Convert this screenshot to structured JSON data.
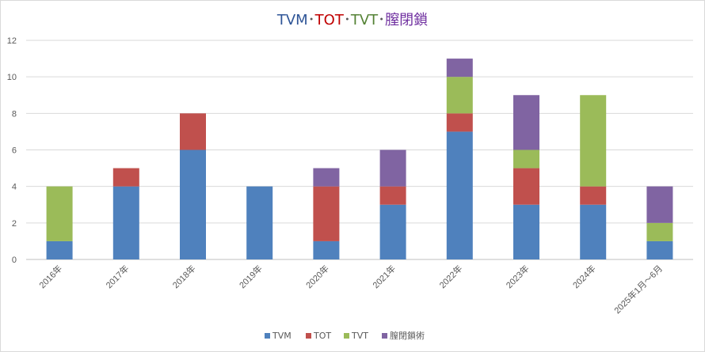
{
  "chart_data": {
    "type": "bar",
    "stacked": true,
    "title_parts": [
      {
        "text": "TVM",
        "color": "#2F5597"
      },
      {
        "text": "･",
        "color": "#595959"
      },
      {
        "text": "TOT",
        "color": "#C00000"
      },
      {
        "text": "･",
        "color": "#595959"
      },
      {
        "text": "TVT",
        "color": "#548235"
      },
      {
        "text": "･",
        "color": "#595959"
      },
      {
        "text": "膣閉鎖",
        "color": "#7030A0"
      }
    ],
    "categories": [
      "2016年",
      "2017年",
      "2018年",
      "2019年",
      "2020年",
      "2021年",
      "2022年",
      "2023年",
      "2024年",
      "2025年1月～6月"
    ],
    "series": [
      {
        "name": "TVM",
        "color": "#4F81BD",
        "values": [
          1,
          4,
          6,
          4,
          1,
          3,
          7,
          3,
          3,
          1
        ]
      },
      {
        "name": "TOT",
        "color": "#C0504D",
        "values": [
          0,
          1,
          2,
          0,
          3,
          1,
          1,
          2,
          1,
          0
        ]
      },
      {
        "name": "TVT",
        "color": "#9BBB59",
        "values": [
          3,
          0,
          0,
          0,
          0,
          0,
          2,
          1,
          5,
          1
        ]
      },
      {
        "name": "膣閉鎖術",
        "color": "#8064A2",
        "values": [
          0,
          0,
          0,
          0,
          1,
          2,
          1,
          3,
          0,
          2
        ]
      }
    ],
    "ylim": [
      0,
      12
    ],
    "yticks": [
      0,
      2,
      4,
      6,
      8,
      10,
      12
    ],
    "grid": true,
    "legend_position": "bottom"
  }
}
